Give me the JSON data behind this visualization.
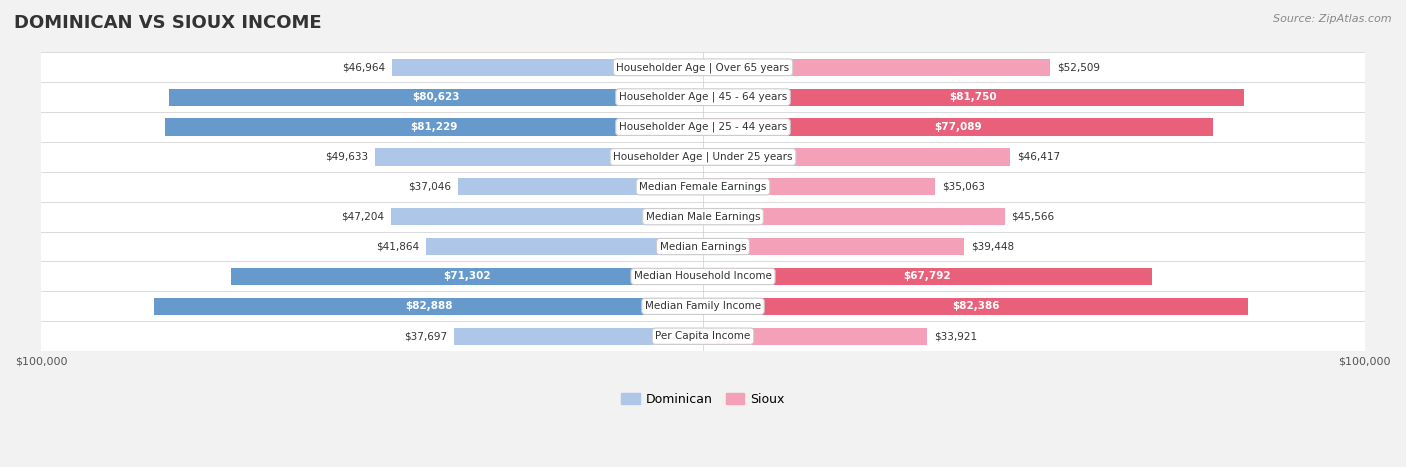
{
  "title": "DOMINICAN VS SIOUX INCOME",
  "source": "Source: ZipAtlas.com",
  "categories": [
    "Per Capita Income",
    "Median Family Income",
    "Median Household Income",
    "Median Earnings",
    "Median Male Earnings",
    "Median Female Earnings",
    "Householder Age | Under 25 years",
    "Householder Age | 25 - 44 years",
    "Householder Age | 45 - 64 years",
    "Householder Age | Over 65 years"
  ],
  "dominican_values": [
    37697,
    82888,
    71302,
    41864,
    47204,
    37046,
    49633,
    81229,
    80623,
    46964
  ],
  "sioux_values": [
    33921,
    82386,
    67792,
    39448,
    45566,
    35063,
    46417,
    77089,
    81750,
    52509
  ],
  "dominican_labels": [
    "$37,697",
    "$82,888",
    "$71,302",
    "$41,864",
    "$47,204",
    "$37,046",
    "$49,633",
    "$81,229",
    "$80,623",
    "$46,964"
  ],
  "sioux_labels": [
    "$33,921",
    "$82,386",
    "$67,792",
    "$39,448",
    "$45,566",
    "$35,063",
    "$46,417",
    "$77,089",
    "$81,750",
    "$52,509"
  ],
  "dominican_color_light": "#aec6e8",
  "dominican_color_dark": "#6699cc",
  "sioux_color_light": "#f4a0b8",
  "sioux_color_dark": "#e8607a",
  "dominican_dark_threshold": 60000,
  "sioux_dark_threshold": 60000,
  "max_value": 100000,
  "bar_height": 0.58,
  "background_color": "#f2f2f2",
  "legend_dominican": "Dominican",
  "legend_sioux": "Sioux"
}
